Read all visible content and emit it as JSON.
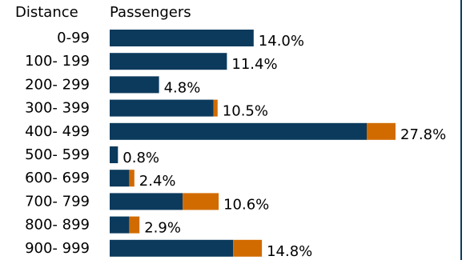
{
  "header": {
    "distance_label": "Distance",
    "passengers_label": "Passengers"
  },
  "colors": {
    "primary": "#0b3a5c",
    "secondary": "#d16b00",
    "border": "#0b3a5c"
  },
  "chart_data": {
    "type": "bar",
    "orientation": "horizontal",
    "stacked": true,
    "categories": [
      "0-99",
      "100- 199",
      "200- 299",
      "300- 399",
      "400- 499",
      "500- 599",
      "600- 699",
      "700- 799",
      "800- 899",
      "900- 999"
    ],
    "totals_labels": [
      "14.0%",
      "11.4%",
      "4.8%",
      "10.5%",
      "27.8%",
      "0.8%",
      "2.4%",
      "10.6%",
      "2.9%",
      "14.8%"
    ],
    "series": [
      {
        "values": [
          14.0,
          11.4,
          4.8,
          10.1,
          25.0,
          0.8,
          1.9,
          7.1,
          1.9,
          12.0
        ]
      },
      {
        "values": [
          0.0,
          0.0,
          0.0,
          0.4,
          2.8,
          0.0,
          0.5,
          3.5,
          1.0,
          2.8
        ]
      }
    ],
    "xlim": [
      0,
      27.8
    ],
    "grid": false,
    "legend": "none"
  }
}
